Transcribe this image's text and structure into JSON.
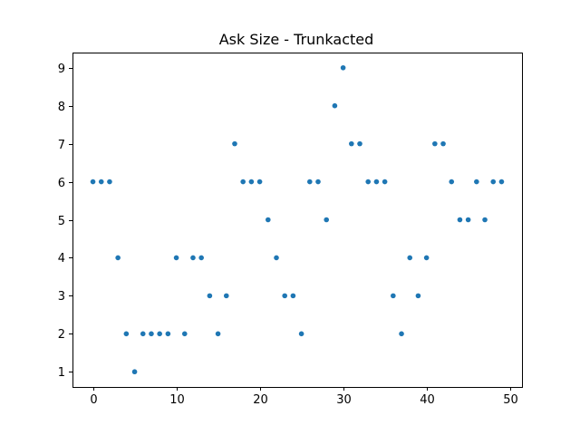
{
  "chart_data": {
    "type": "scatter",
    "title": "Ask Size - Trunkacted",
    "xlabel": "",
    "ylabel": "",
    "xlim": [
      -2.45,
      51.45
    ],
    "ylim": [
      0.6,
      9.4
    ],
    "xticks": [
      0,
      10,
      20,
      30,
      40,
      50
    ],
    "yticks": [
      1,
      2,
      3,
      4,
      5,
      6,
      7,
      8,
      9
    ],
    "grid": false,
    "marker_color": "#1f77b4",
    "x": [
      0,
      1,
      2,
      3,
      4,
      5,
      6,
      7,
      8,
      9,
      10,
      11,
      12,
      13,
      14,
      15,
      16,
      17,
      18,
      19,
      20,
      21,
      22,
      23,
      24,
      25,
      26,
      27,
      28,
      29,
      30,
      31,
      32,
      33,
      34,
      35,
      36,
      37,
      38,
      39,
      40,
      41,
      42,
      43,
      44,
      45,
      46,
      47,
      48,
      49
    ],
    "y": [
      6,
      6,
      6,
      4,
      2,
      1,
      2,
      2,
      2,
      2,
      4,
      2,
      4,
      4,
      3,
      2,
      3,
      7,
      6,
      6,
      6,
      5,
      4,
      3,
      3,
      2,
      6,
      6,
      5,
      8,
      9,
      7,
      7,
      6,
      6,
      6,
      3,
      2,
      4,
      3,
      4,
      7,
      7,
      6,
      5,
      5,
      6,
      5,
      6,
      6
    ]
  }
}
